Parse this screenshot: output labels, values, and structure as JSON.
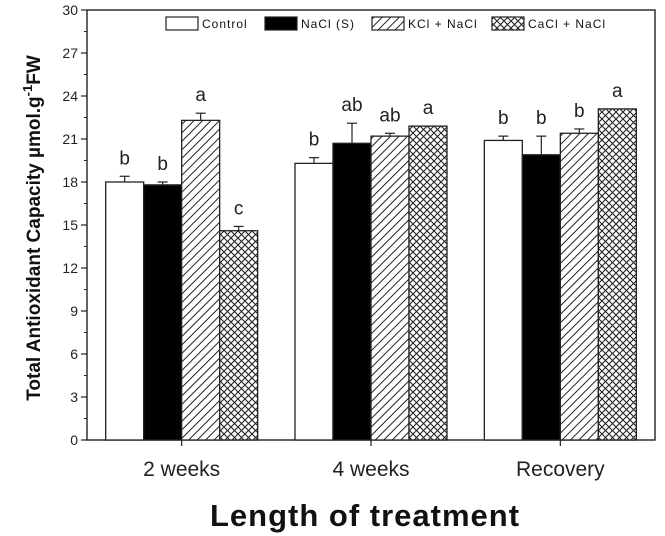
{
  "chart_data": {
    "type": "bar",
    "title": "",
    "xlabel": "Length of treatment",
    "ylabel": {
      "main": "Total Antioxidant Capacity µmol.g",
      "superscript": "-1",
      "suffix": "FW"
    },
    "ylim": [
      0,
      30
    ],
    "yticks": [
      "0",
      "3",
      "6",
      "9",
      "12",
      "15",
      "18",
      "21",
      "24",
      "27",
      "30"
    ],
    "categories": [
      "2 weeks",
      "4 weeks",
      "Recovery"
    ],
    "legend_position": "top",
    "series": [
      {
        "name": "Control",
        "fill": "white",
        "values": [
          18.0,
          19.3,
          20.9
        ],
        "errors": [
          0.4,
          0.4,
          0.3
        ],
        "labels": [
          "b",
          "b",
          "b"
        ]
      },
      {
        "name": "NaCl (S)",
        "fill": "black",
        "values": [
          17.8,
          20.7,
          19.9
        ],
        "errors": [
          0.2,
          1.4,
          1.3
        ],
        "labels": [
          "b",
          "ab",
          "b"
        ]
      },
      {
        "name": "KCl + NaCl",
        "fill": "diagonal-hatch",
        "values": [
          22.3,
          21.2,
          21.4
        ],
        "errors": [
          0.5,
          0.2,
          0.3
        ],
        "labels": [
          "a",
          "ab",
          "b"
        ]
      },
      {
        "name": "CaCl + NaCl",
        "fill": "cross-hatch",
        "values": [
          14.6,
          21.9,
          23.1
        ],
        "errors": [
          0.3,
          0.0,
          0.0
        ],
        "labels": [
          "c",
          "a",
          "a"
        ]
      }
    ]
  }
}
